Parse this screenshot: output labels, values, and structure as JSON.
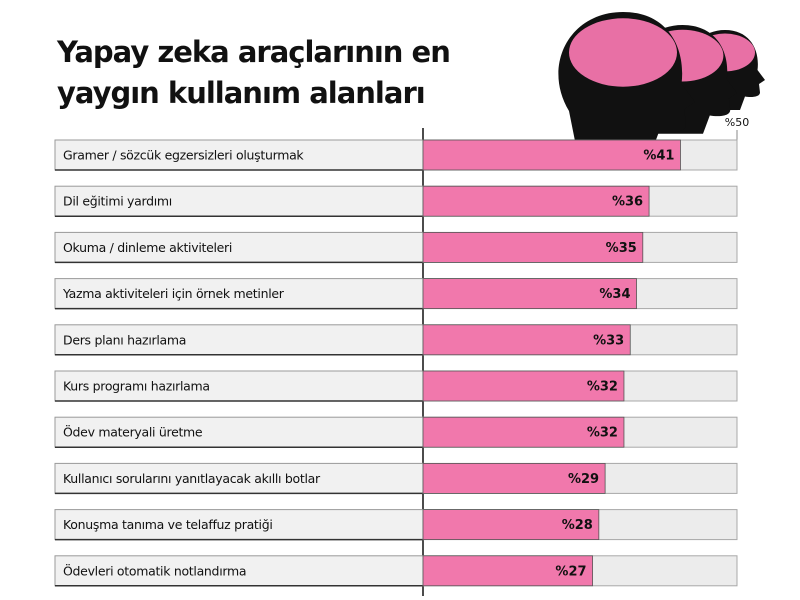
{
  "chart_data": {
    "type": "barh",
    "title": [
      "Yapay zeka araçlarının en",
      "yaygın kullanım alanları"
    ],
    "categories": [
      "Gramer / sözcük egzersizleri oluşturmak",
      "Dil eğitimi yardımı",
      "Okuma / dinleme  aktiviteleri",
      "Yazma aktiviteleri için örnek metinler",
      "Ders planı hazırlama",
      "Kurs programı hazırlama",
      "Ödev materyali üretme",
      "Kullanıcı sorularını yanıtlayacak akıllı botlar",
      "Konuşma tanıma ve telaffuz pratiği",
      "Ödevleri otomatik notlandırma"
    ],
    "values": [
      41,
      36,
      35,
      34,
      33,
      32,
      32,
      29,
      28,
      27
    ],
    "value_labels": [
      "%41",
      "%36",
      "%35",
      "%34",
      "%33",
      "%32",
      "%32",
      "%29",
      "%28",
      "%27"
    ],
    "color": "#f178ac",
    "xlim": [
      0,
      50
    ],
    "xticks": [
      {
        "value": 50,
        "label": "%50"
      }
    ]
  }
}
